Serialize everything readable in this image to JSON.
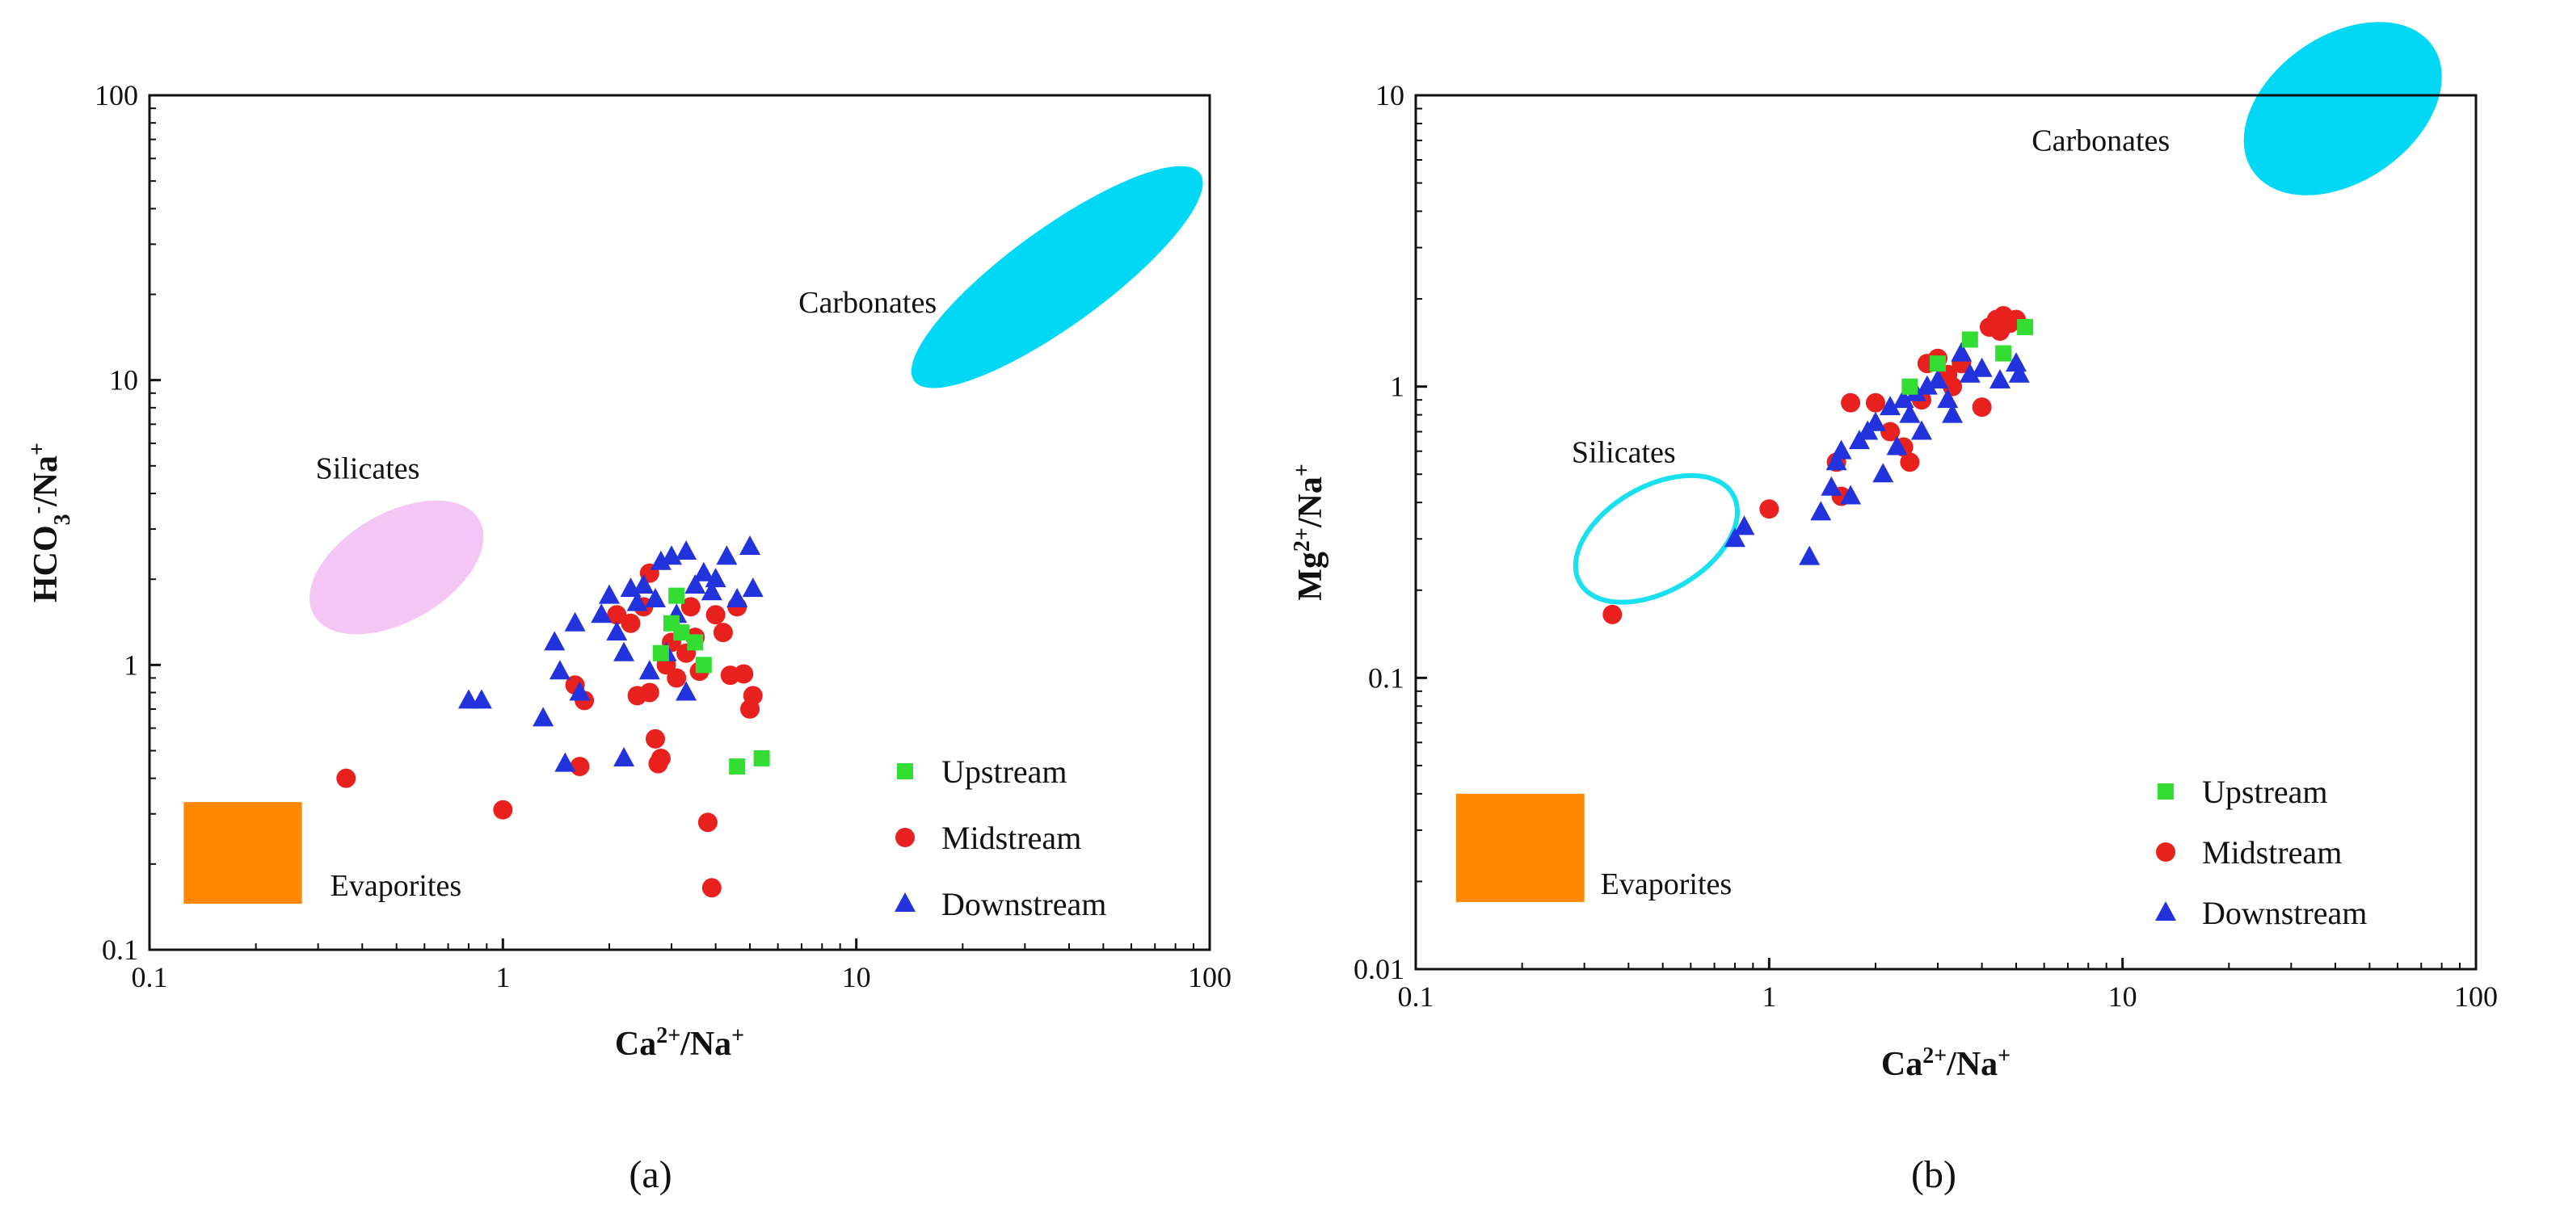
{
  "chart_data": [
    {
      "id": "a",
      "type": "scatter",
      "scale": "log-log",
      "panel_label": "(a)",
      "xlabel": {
        "main": "Ca",
        "sup1": "2+",
        "mid": "/Na",
        "sup2": "+"
      },
      "ylabel": {
        "main": "HCO",
        "sub": "3",
        "sup1": "-",
        "mid": "/Na",
        "sup2": "+"
      },
      "xlim": [
        0.1,
        100
      ],
      "ylim": [
        0.1,
        100
      ],
      "xticks": [
        {
          "v": 0.1,
          "label": "0.1"
        },
        {
          "v": 1,
          "label": "1"
        },
        {
          "v": 10,
          "label": "10"
        },
        {
          "v": 100,
          "label": "100"
        }
      ],
      "yticks": [
        {
          "v": 0.1,
          "label": "0.1"
        },
        {
          "v": 1,
          "label": "1"
        },
        {
          "v": 10,
          "label": "10"
        },
        {
          "v": 100,
          "label": "100"
        }
      ],
      "regions": [
        {
          "name": "Carbonates",
          "shape": "ellipse",
          "style": "filled",
          "color": "#00d8f5",
          "center": [
            37,
            23
          ],
          "rx_decades": 0.5,
          "ry_decades": 0.17,
          "rotate_deg": -36
        },
        {
          "name": "Silicates",
          "shape": "ellipse",
          "style": "filled",
          "color": "#f4c6f5",
          "center": [
            0.5,
            2.2
          ],
          "rx_decades": 0.27,
          "ry_decades": 0.19,
          "rotate_deg": -30
        },
        {
          "name": "Evaporites",
          "shape": "rect",
          "style": "filled",
          "color": "#ff8800",
          "x_range": [
            0.125,
            0.27
          ],
          "y_range": [
            0.145,
            0.33
          ]
        }
      ],
      "legend": [
        "Upstream",
        "Midstream",
        "Downstream"
      ],
      "series": [
        {
          "name": "Upstream",
          "color": "#33dd33",
          "marker": "square",
          "points": [
            [
              3.0,
              1.4
            ],
            [
              3.1,
              1.75
            ],
            [
              3.2,
              1.3
            ],
            [
              3.5,
              1.2
            ],
            [
              3.7,
              1.0
            ],
            [
              4.6,
              0.44
            ],
            [
              5.4,
              0.47
            ],
            [
              2.8,
              1.1
            ]
          ]
        },
        {
          "name": "Midstream",
          "color": "#e8211e",
          "marker": "circle",
          "points": [
            [
              0.36,
              0.4
            ],
            [
              1.0,
              0.31
            ],
            [
              1.6,
              0.85
            ],
            [
              1.7,
              0.75
            ],
            [
              1.65,
              0.44
            ],
            [
              2.1,
              1.5
            ],
            [
              2.3,
              1.4
            ],
            [
              2.5,
              1.6
            ],
            [
              2.6,
              0.8
            ],
            [
              2.7,
              0.55
            ],
            [
              2.75,
              0.45
            ],
            [
              2.8,
              0.47
            ],
            [
              2.9,
              1.0
            ],
            [
              3.0,
              1.2
            ],
            [
              3.1,
              0.9
            ],
            [
              3.3,
              1.1
            ],
            [
              3.5,
              1.25
            ],
            [
              3.6,
              0.95
            ],
            [
              3.8,
              0.28
            ],
            [
              3.9,
              0.165
            ],
            [
              4.0,
              1.5
            ],
            [
              4.2,
              1.3
            ],
            [
              4.4,
              0.92
            ],
            [
              4.6,
              1.6
            ],
            [
              4.8,
              0.93
            ],
            [
              5.0,
              0.7
            ],
            [
              5.1,
              0.78
            ],
            [
              2.6,
              2.1
            ],
            [
              2.4,
              0.78
            ],
            [
              3.4,
              1.6
            ]
          ]
        },
        {
          "name": "Downstream",
          "color": "#2233dd",
          "marker": "triangle",
          "points": [
            [
              0.8,
              0.75
            ],
            [
              0.87,
              0.75
            ],
            [
              1.3,
              0.65
            ],
            [
              1.4,
              1.2
            ],
            [
              1.45,
              0.95
            ],
            [
              1.5,
              0.45
            ],
            [
              1.6,
              1.4
            ],
            [
              1.65,
              0.8
            ],
            [
              1.9,
              1.5
            ],
            [
              2.0,
              1.75
            ],
            [
              2.1,
              1.3
            ],
            [
              2.2,
              0.47
            ],
            [
              2.3,
              1.85
            ],
            [
              2.4,
              1.65
            ],
            [
              2.5,
              1.9
            ],
            [
              2.6,
              0.95
            ],
            [
              2.7,
              1.7
            ],
            [
              2.8,
              2.3
            ],
            [
              2.9,
              1.1
            ],
            [
              3.0,
              2.4
            ],
            [
              3.1,
              1.5
            ],
            [
              3.3,
              2.5
            ],
            [
              3.5,
              1.9
            ],
            [
              3.7,
              2.1
            ],
            [
              3.9,
              1.8
            ],
            [
              4.0,
              2.0
            ],
            [
              4.3,
              2.4
            ],
            [
              4.6,
              1.7
            ],
            [
              5.0,
              2.6
            ],
            [
              5.1,
              1.85
            ],
            [
              2.2,
              1.1
            ],
            [
              3.3,
              0.8
            ]
          ]
        }
      ]
    },
    {
      "id": "b",
      "type": "scatter",
      "scale": "log-log",
      "panel_label": "(b)",
      "xlabel": {
        "main": "Ca",
        "sup1": "2+",
        "mid": "/Na",
        "sup2": "+"
      },
      "ylabel": {
        "main": "Mg",
        "sup1": "2+",
        "mid": "/Na",
        "sup2": "+"
      },
      "xlim": [
        0.1,
        100
      ],
      "ylim": [
        0.01,
        10
      ],
      "xticks": [
        {
          "v": 0.1,
          "label": "0.1"
        },
        {
          "v": 1,
          "label": "1"
        },
        {
          "v": 10,
          "label": "10"
        },
        {
          "v": 100,
          "label": "100"
        }
      ],
      "yticks": [
        {
          "v": 0.01,
          "label": "0.01"
        },
        {
          "v": 0.1,
          "label": "0.1"
        },
        {
          "v": 1,
          "label": "1"
        },
        {
          "v": 10,
          "label": "10"
        }
      ],
      "regions": [
        {
          "name": "Carbonates",
          "shape": "ellipse",
          "style": "filled",
          "color": "#00d8f5",
          "center": [
            42,
            9
          ],
          "rx_decades": 0.31,
          "ry_decades": 0.25,
          "rotate_deg": -35
        },
        {
          "name": "Silicates",
          "shape": "ellipse",
          "style": "outline",
          "color": "#19e0ee",
          "center": [
            0.48,
            0.3
          ],
          "rx_decades": 0.25,
          "ry_decades": 0.18,
          "rotate_deg": -30
        },
        {
          "name": "Evaporites",
          "shape": "rect",
          "style": "filled",
          "color": "#ff8800",
          "x_range": [
            0.13,
            0.3
          ],
          "y_range": [
            0.017,
            0.04
          ]
        }
      ],
      "legend": [
        "Upstream",
        "Midstream",
        "Downstream"
      ],
      "series": [
        {
          "name": "Upstream",
          "color": "#33dd33",
          "marker": "square",
          "points": [
            [
              3.7,
              1.45
            ],
            [
              4.6,
              1.3
            ],
            [
              5.3,
              1.6
            ],
            [
              3.0,
              1.2
            ],
            [
              2.5,
              1.0
            ]
          ]
        },
        {
          "name": "Midstream",
          "color": "#e8211e",
          "marker": "circle",
          "points": [
            [
              0.36,
              0.165
            ],
            [
              1.0,
              0.38
            ],
            [
              1.55,
              0.55
            ],
            [
              1.6,
              0.42
            ],
            [
              1.7,
              0.88
            ],
            [
              2.0,
              0.88
            ],
            [
              2.2,
              0.7
            ],
            [
              2.4,
              0.62
            ],
            [
              2.5,
              0.55
            ],
            [
              2.7,
              0.9
            ],
            [
              2.8,
              1.2
            ],
            [
              3.0,
              1.25
            ],
            [
              3.2,
              1.1
            ],
            [
              3.5,
              1.2
            ],
            [
              4.0,
              0.85
            ],
            [
              4.2,
              1.6
            ],
            [
              4.4,
              1.7
            ],
            [
              4.6,
              1.75
            ],
            [
              4.8,
              1.65
            ],
            [
              5.0,
              1.7
            ],
            [
              4.5,
              1.55
            ],
            [
              3.3,
              1.0
            ]
          ]
        },
        {
          "name": "Downstream",
          "color": "#2233dd",
          "marker": "triangle",
          "points": [
            [
              0.8,
              0.3
            ],
            [
              0.85,
              0.33
            ],
            [
              1.3,
              0.26
            ],
            [
              1.4,
              0.37
            ],
            [
              1.5,
              0.45
            ],
            [
              1.55,
              0.55
            ],
            [
              1.6,
              0.6
            ],
            [
              1.7,
              0.42
            ],
            [
              1.8,
              0.65
            ],
            [
              1.9,
              0.7
            ],
            [
              2.0,
              0.75
            ],
            [
              2.1,
              0.5
            ],
            [
              2.2,
              0.85
            ],
            [
              2.3,
              0.62
            ],
            [
              2.4,
              0.9
            ],
            [
              2.5,
              0.8
            ],
            [
              2.6,
              0.95
            ],
            [
              2.7,
              0.7
            ],
            [
              2.8,
              1.0
            ],
            [
              3.0,
              1.05
            ],
            [
              3.2,
              0.9
            ],
            [
              3.5,
              1.3
            ],
            [
              3.7,
              1.1
            ],
            [
              4.0,
              1.15
            ],
            [
              4.5,
              1.05
            ],
            [
              5.0,
              1.2
            ],
            [
              5.1,
              1.1
            ],
            [
              3.3,
              0.8
            ]
          ]
        }
      ]
    }
  ]
}
